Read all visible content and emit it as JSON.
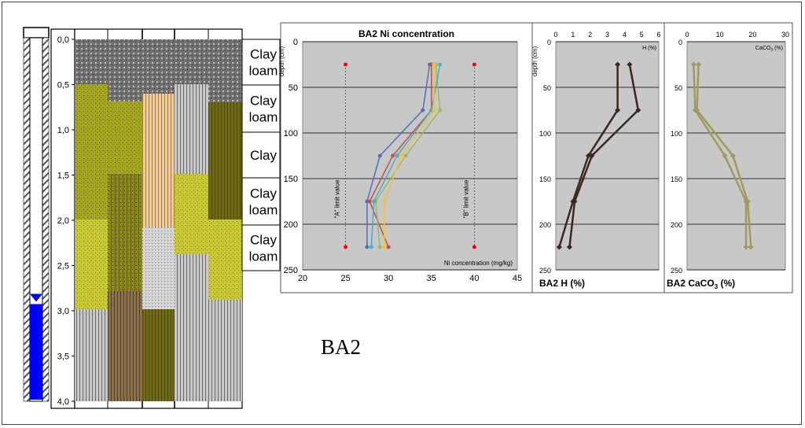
{
  "site_label": "BA2",
  "depth_ticks": [
    "0,0",
    "0,5",
    "1,0",
    "1,5",
    "2,0",
    "2,5",
    "3,0",
    "3,5",
    "4,0"
  ],
  "groundwater_depth_m": 2.9,
  "soil_textures": [
    "Clay loam",
    "Clay loam",
    "Clay",
    "Clay loam",
    "Clay loam"
  ],
  "colors": {
    "water": "#0000ff",
    "chart_bg": "#c8c8c8",
    "limit": "#ff0000",
    "h_line": "#3b2620",
    "caco3_line": "#a09a60"
  },
  "chart_data": [
    {
      "type": "line",
      "title": "BA2 Ni concentration",
      "xlabel": "Ni concentration (mg/kg)",
      "ylabel": "depth (cm)",
      "xlim": [
        20,
        45
      ],
      "ylim": [
        250,
        0
      ],
      "xticks": [
        "20",
        "25",
        "30",
        "35",
        "40",
        "45"
      ],
      "yticks": [
        "0",
        "50",
        "100",
        "150",
        "200",
        "250"
      ],
      "limits": [
        {
          "label": "\"A\" limit value",
          "x": 25,
          "y": [
            25,
            225
          ]
        },
        {
          "label": "\"B\" limit value",
          "x": 40,
          "y": [
            25,
            225
          ]
        }
      ],
      "series": [
        {
          "color": "#4f6fb8",
          "x": [
            34.8,
            34,
            29,
            27.5,
            27.5
          ],
          "y": [
            25,
            75,
            125,
            175,
            225
          ]
        },
        {
          "color": "#c0504d",
          "x": [
            35,
            35,
            30.5,
            27.8,
            30
          ],
          "y": [
            25,
            75,
            125,
            175,
            225
          ]
        },
        {
          "color": "#9bbb59",
          "x": [
            35.5,
            36,
            32,
            28.5,
            29
          ],
          "y": [
            25,
            75,
            125,
            175,
            225
          ]
        },
        {
          "color": "#4bacc6",
          "x": [
            36,
            35,
            31,
            28.3,
            28
          ],
          "y": [
            25,
            75,
            125,
            175,
            225
          ]
        },
        {
          "color": "#f0c040",
          "x": [
            35.3,
            35.3,
            31.5,
            29.5,
            29.5
          ],
          "y": [
            25,
            75,
            125,
            175,
            225
          ]
        }
      ]
    },
    {
      "type": "line",
      "title": "BA2 H (%)",
      "xlabel": "H (%)",
      "ylabel": "depth (cm)",
      "xlim": [
        0,
        6
      ],
      "ylim": [
        250,
        0
      ],
      "xticks": [
        "0",
        "1",
        "2",
        "3",
        "4",
        "5",
        "6"
      ],
      "yticks": [
        "0",
        "50",
        "100",
        "150",
        "200",
        "250"
      ],
      "series": [
        {
          "color": "#3b2620",
          "x": [
            3.6,
            3.6,
            1.9,
            1,
            0.2
          ],
          "y": [
            25,
            75,
            125,
            175,
            225
          ]
        },
        {
          "color": "#3b2620",
          "x": [
            4.3,
            4.8,
            2.1,
            1.1,
            0.8
          ],
          "y": [
            25,
            75,
            125,
            175,
            225
          ]
        }
      ]
    },
    {
      "type": "line",
      "title": "BA2 CaCO3 (%)",
      "xlabel": "CaCO3 (%)",
      "ylabel": "",
      "xlim": [
        0,
        30
      ],
      "ylim": [
        250,
        0
      ],
      "xticks": [
        "0",
        "10",
        "20",
        "30"
      ],
      "yticks": [
        "0",
        "50",
        "100",
        "150",
        "200",
        "250"
      ],
      "series": [
        {
          "color": "#a09a60",
          "x": [
            2,
            2.5,
            11.5,
            18,
            18
          ],
          "y": [
            25,
            75,
            125,
            175,
            225
          ]
        },
        {
          "color": "#a09a60",
          "x": [
            3.5,
            3,
            14,
            18.5,
            19.5
          ],
          "y": [
            25,
            75,
            125,
            175,
            225
          ]
        }
      ]
    }
  ]
}
